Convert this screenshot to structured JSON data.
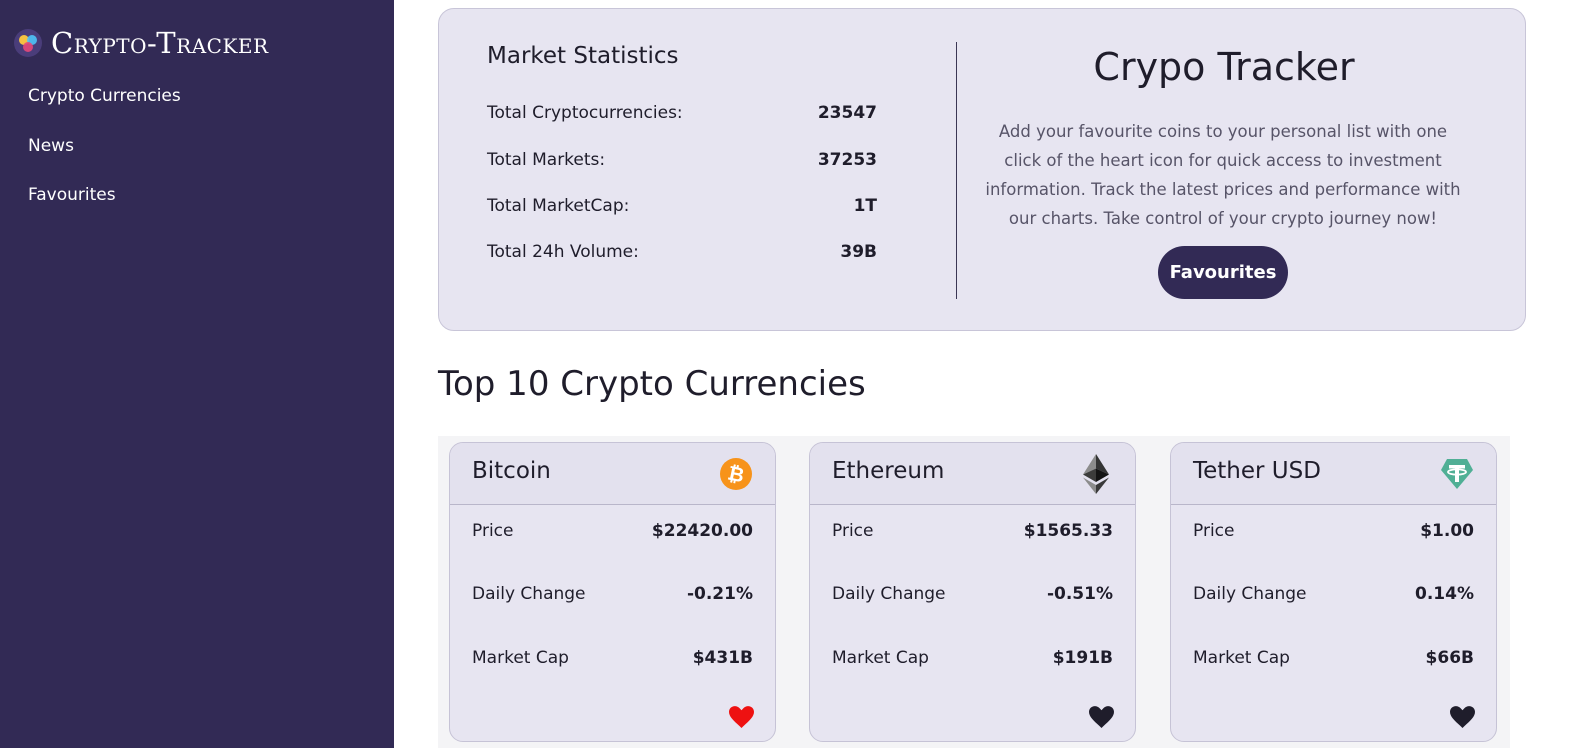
{
  "app": {
    "title": "Crypto-Tracker"
  },
  "sidebar": {
    "items": [
      {
        "label": "Crypto Currencies"
      },
      {
        "label": "News"
      },
      {
        "label": "Favourites"
      }
    ]
  },
  "stats": {
    "heading": "Market Statistics",
    "rows": [
      {
        "label": "Total Cryptocurrencies:",
        "value": "23547"
      },
      {
        "label": "Total Markets:",
        "value": "37253"
      },
      {
        "label": "Total MarketCap:",
        "value": "1T"
      },
      {
        "label": "Total 24h Volume:",
        "value": "39B"
      }
    ]
  },
  "tracker": {
    "title": "Crypo Tracker",
    "description": "Add your favourite coins to your personal list with one click of the heart icon for quick access to investment information. Track the latest prices and performance with our charts. Take control of your crypto journey now!",
    "button_label": "Favourites"
  },
  "top": {
    "heading": "Top 10 Crypto Currencies"
  },
  "coins": [
    {
      "name": "Bitcoin",
      "icon": "bitcoin-icon",
      "price_label": "Price",
      "price": "$22420.00",
      "change_label": "Daily Change",
      "change": "-0.21%",
      "cap_label": "Market Cap",
      "cap": "$431B",
      "favourite": true
    },
    {
      "name": "Ethereum",
      "icon": "ethereum-icon",
      "price_label": "Price",
      "price": "$1565.33",
      "change_label": "Daily Change",
      "change": "-0.51%",
      "cap_label": "Market Cap",
      "cap": "$191B",
      "favourite": false
    },
    {
      "name": "Tether USD",
      "icon": "tether-icon",
      "price_label": "Price",
      "price": "$1.00",
      "change_label": "Daily Change",
      "change": "0.14%",
      "cap_label": "Market Cap",
      "cap": "$66B",
      "favourite": false
    }
  ],
  "colors": {
    "sidebar": "#322a55",
    "panel": "#e7e5f1",
    "heart_active": "#ee1111",
    "heart_inactive": "#1f1d2b",
    "bitcoin": "#f7931a",
    "ethereum": "#343434",
    "tether": "#50af95"
  }
}
